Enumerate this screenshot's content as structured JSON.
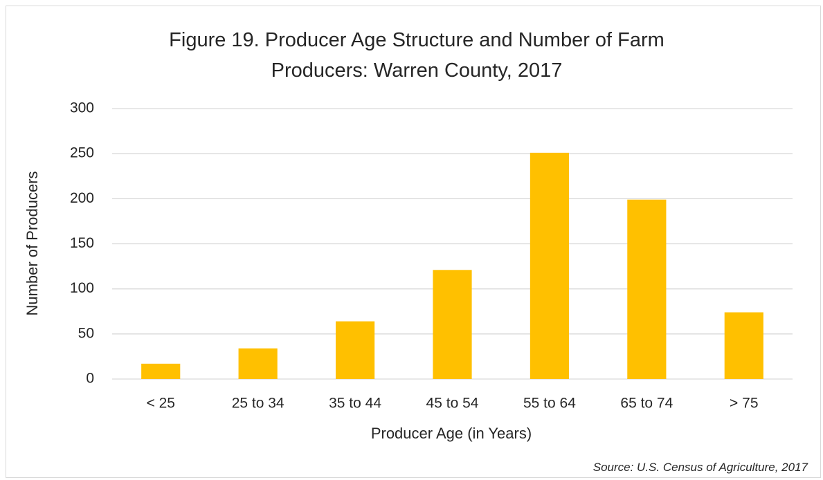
{
  "chart_data": {
    "type": "bar",
    "title": "Figure 19. Producer Age Structure and Number of Farm Producers: Warren County, 2017",
    "x_label": "Producer Age (in Years)",
    "y_label": "Number of Producers",
    "source": "Source: U.S. Census of Agriculture, 2017",
    "categories": [
      "< 25",
      "25 to 34",
      "35 to 44",
      "45 to 54",
      "55 to 64",
      "65 to 74",
      "> 75"
    ],
    "values": [
      17,
      34,
      64,
      121,
      251,
      199,
      74
    ],
    "color": "#ffc000",
    "ylim": [
      0,
      300
    ],
    "yticks": [
      0,
      50,
      100,
      150,
      200,
      250,
      300
    ],
    "grid": true
  }
}
